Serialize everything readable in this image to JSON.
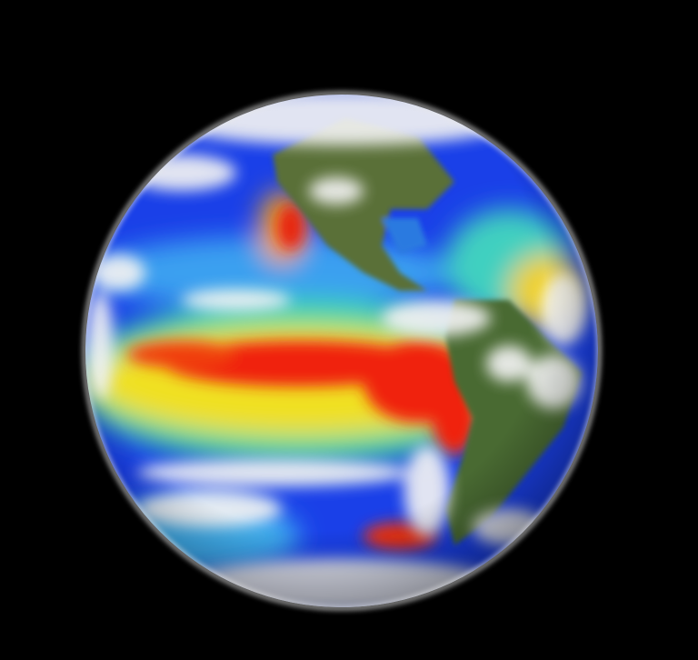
{
  "image": {
    "subject": "globe",
    "colors": {
      "background": "#000000",
      "cold": "#1030e0",
      "cool": "#30a0f0",
      "mild": "#40e080",
      "warm": "#f0e020",
      "hot": "#f02010",
      "land": "#4a6a30",
      "cloud": "#f2f2f2"
    }
  }
}
